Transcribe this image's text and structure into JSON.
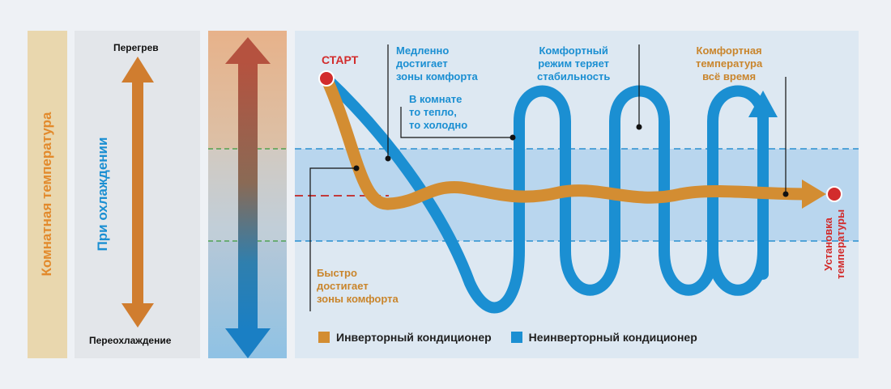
{
  "labels": {
    "room_temp": "Комнатная температура",
    "cooling": "При охлаждении",
    "overheat": "Перегрев",
    "overcool": "Переохлаждение",
    "start": "СТАРТ",
    "slow": "Медленно\nдостигает\nзоны комфорта",
    "warm_cold": "В комнате\nто тепло,\nто холодно",
    "unstable": "Комфортный\nрежим теряет\nстабильность",
    "always": "Комфортная\nтемпература\nвсё время",
    "fast": "Быстро\nдостигает\nзоны комфорта",
    "setpoint": "Установка\nтемпературы"
  },
  "legend": {
    "inverter": "Инверторный кондиционер",
    "non_inverter": "Неинверторный кондиционер"
  },
  "colors": {
    "inverter": "#d38d32",
    "non_inverter": "#1b8fd2",
    "marker": "#d22c2c",
    "comfort_zone": "#b9d6ee"
  }
}
